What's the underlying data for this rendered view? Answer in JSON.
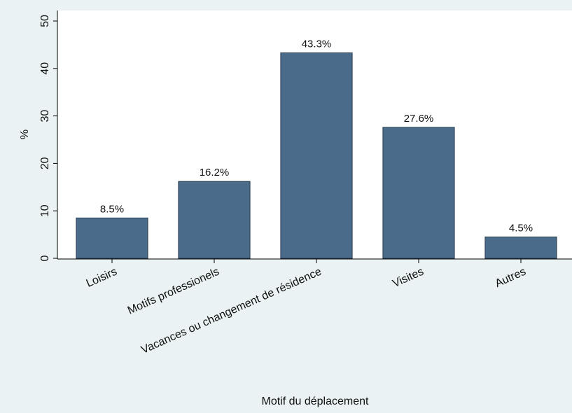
{
  "chart_data": {
    "type": "bar",
    "x_label": "Motif du déplacement",
    "y_label": "%",
    "categories": [
      "Loisirs",
      "Motifs professionels",
      "Vacances ou changement de résidence",
      "Visites",
      "Autres"
    ],
    "values": [
      8.5,
      16.2,
      43.3,
      27.6,
      4.5
    ],
    "value_labels": [
      "8.5%",
      "16.2%",
      "43.3%",
      "27.6%",
      "4.5%"
    ],
    "color": "#4a6b8a",
    "ylim": [
      0,
      50
    ],
    "yticks": [
      0,
      10,
      20,
      30,
      40,
      50
    ],
    "grid": false
  }
}
